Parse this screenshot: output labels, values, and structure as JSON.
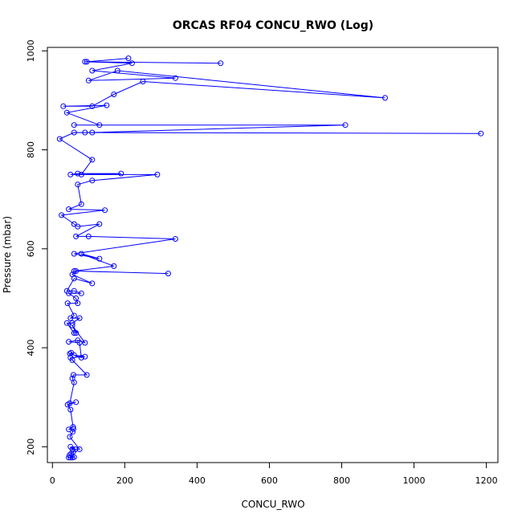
{
  "chart_data": {
    "type": "line",
    "title": "ORCAS RF04 CONCU_RWO (Log)",
    "xlabel": "CONCU_RWO",
    "ylabel": "Pressure (mbar)",
    "xlim": [
      -14,
      1232
    ],
    "ylim": [
      1007,
      168
    ],
    "y_inverted": true,
    "grid": false,
    "legend": "none",
    "xticks": [
      0,
      200,
      400,
      600,
      800,
      1000,
      1200
    ],
    "yticks": [
      200,
      400,
      600,
      800,
      1000
    ],
    "xtick_labels": [
      "0",
      "200",
      "400",
      "600",
      "800",
      "1000",
      "1200"
    ],
    "ytick_labels": [
      "200",
      "400",
      "600",
      "800",
      "1000"
    ],
    "series_color": "#0000ff",
    "series": [
      {
        "x": [
          45,
          50,
          55,
          60,
          47,
          52,
          58,
          63,
          50,
          55,
          75,
          48,
          56,
          58,
          45,
          57,
          50,
          42,
          65,
          48,
          60,
          55,
          58,
          95,
          55,
          50,
          90,
          60,
          52,
          48,
          80,
          75,
          45,
          70,
          90,
          55,
          65,
          60,
          40,
          55,
          75,
          50,
          60,
          42,
          70,
          65,
          45,
          80,
          60,
          40,
          60,
          110,
          55,
          65,
          320,
          60,
          170,
          80,
          130,
          60,
          340,
          100,
          65,
          130,
          70,
          60,
          25,
          145,
          45,
          80,
          70,
          110,
          290,
          50,
          70,
          190,
          80,
          110,
          20,
          60,
          1185,
          90,
          110,
          810,
          60,
          130,
          40,
          150,
          30,
          110,
          170,
          250,
          920,
          180,
          100,
          340,
          110,
          220,
          90,
          465,
          95,
          210
        ],
        "y": [
          178,
          178,
          178,
          179,
          183,
          186,
          190,
          195,
          200,
          195,
          195,
          220,
          230,
          236,
          235,
          240,
          275,
          285,
          290,
          288,
          330,
          338,
          345,
          345,
          375,
          380,
          382,
          385,
          390,
          388,
          380,
          410,
          412,
          415,
          410,
          445,
          430,
          430,
          450,
          450,
          460,
          460,
          465,
          490,
          490,
          500,
          510,
          510,
          515,
          515,
          540,
          530,
          548,
          555,
          550,
          555,
          565,
          590,
          580,
          590,
          620,
          625,
          625,
          650,
          645,
          650,
          668,
          678,
          680,
          690,
          730,
          738,
          750,
          750,
          752,
          752,
          750,
          780,
          822,
          835,
          833,
          835,
          835,
          850,
          850,
          850,
          875,
          890,
          888,
          888,
          912,
          938,
          905,
          960,
          940,
          945,
          960,
          975,
          978,
          975,
          978,
          985
        ]
      }
    ]
  }
}
